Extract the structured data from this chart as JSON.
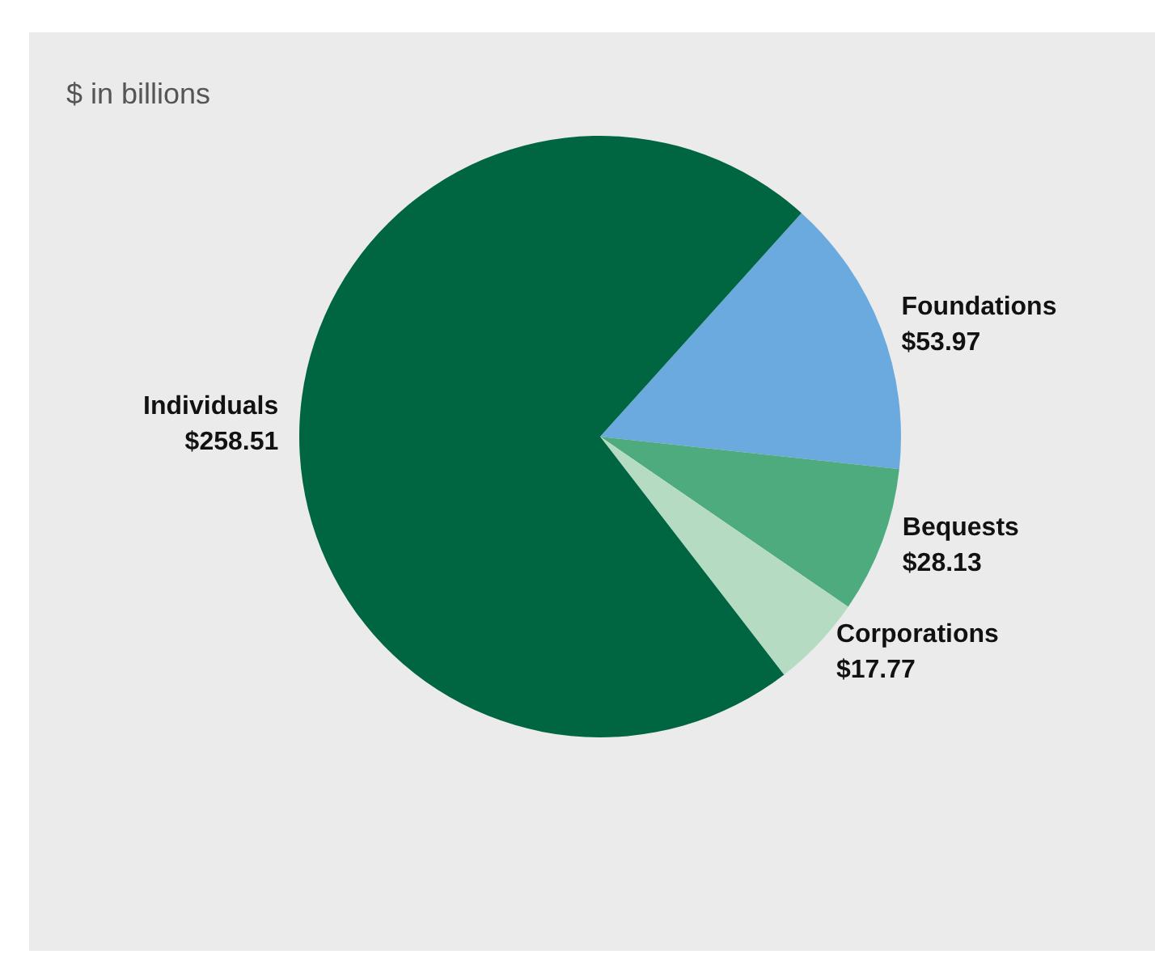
{
  "chart_data": {
    "type": "pie",
    "subtitle": "$ in billions",
    "categories": [
      "Foundations",
      "Bequests",
      "Corporations",
      "Individuals"
    ],
    "values": [
      53.97,
      28.13,
      17.77,
      258.51
    ],
    "colors": [
      "#6aaade",
      "#4dab7e",
      "#b6dbc3",
      "#006641"
    ],
    "value_labels": [
      "$53.97",
      "$28.13",
      "$17.77",
      "$258.51"
    ]
  }
}
